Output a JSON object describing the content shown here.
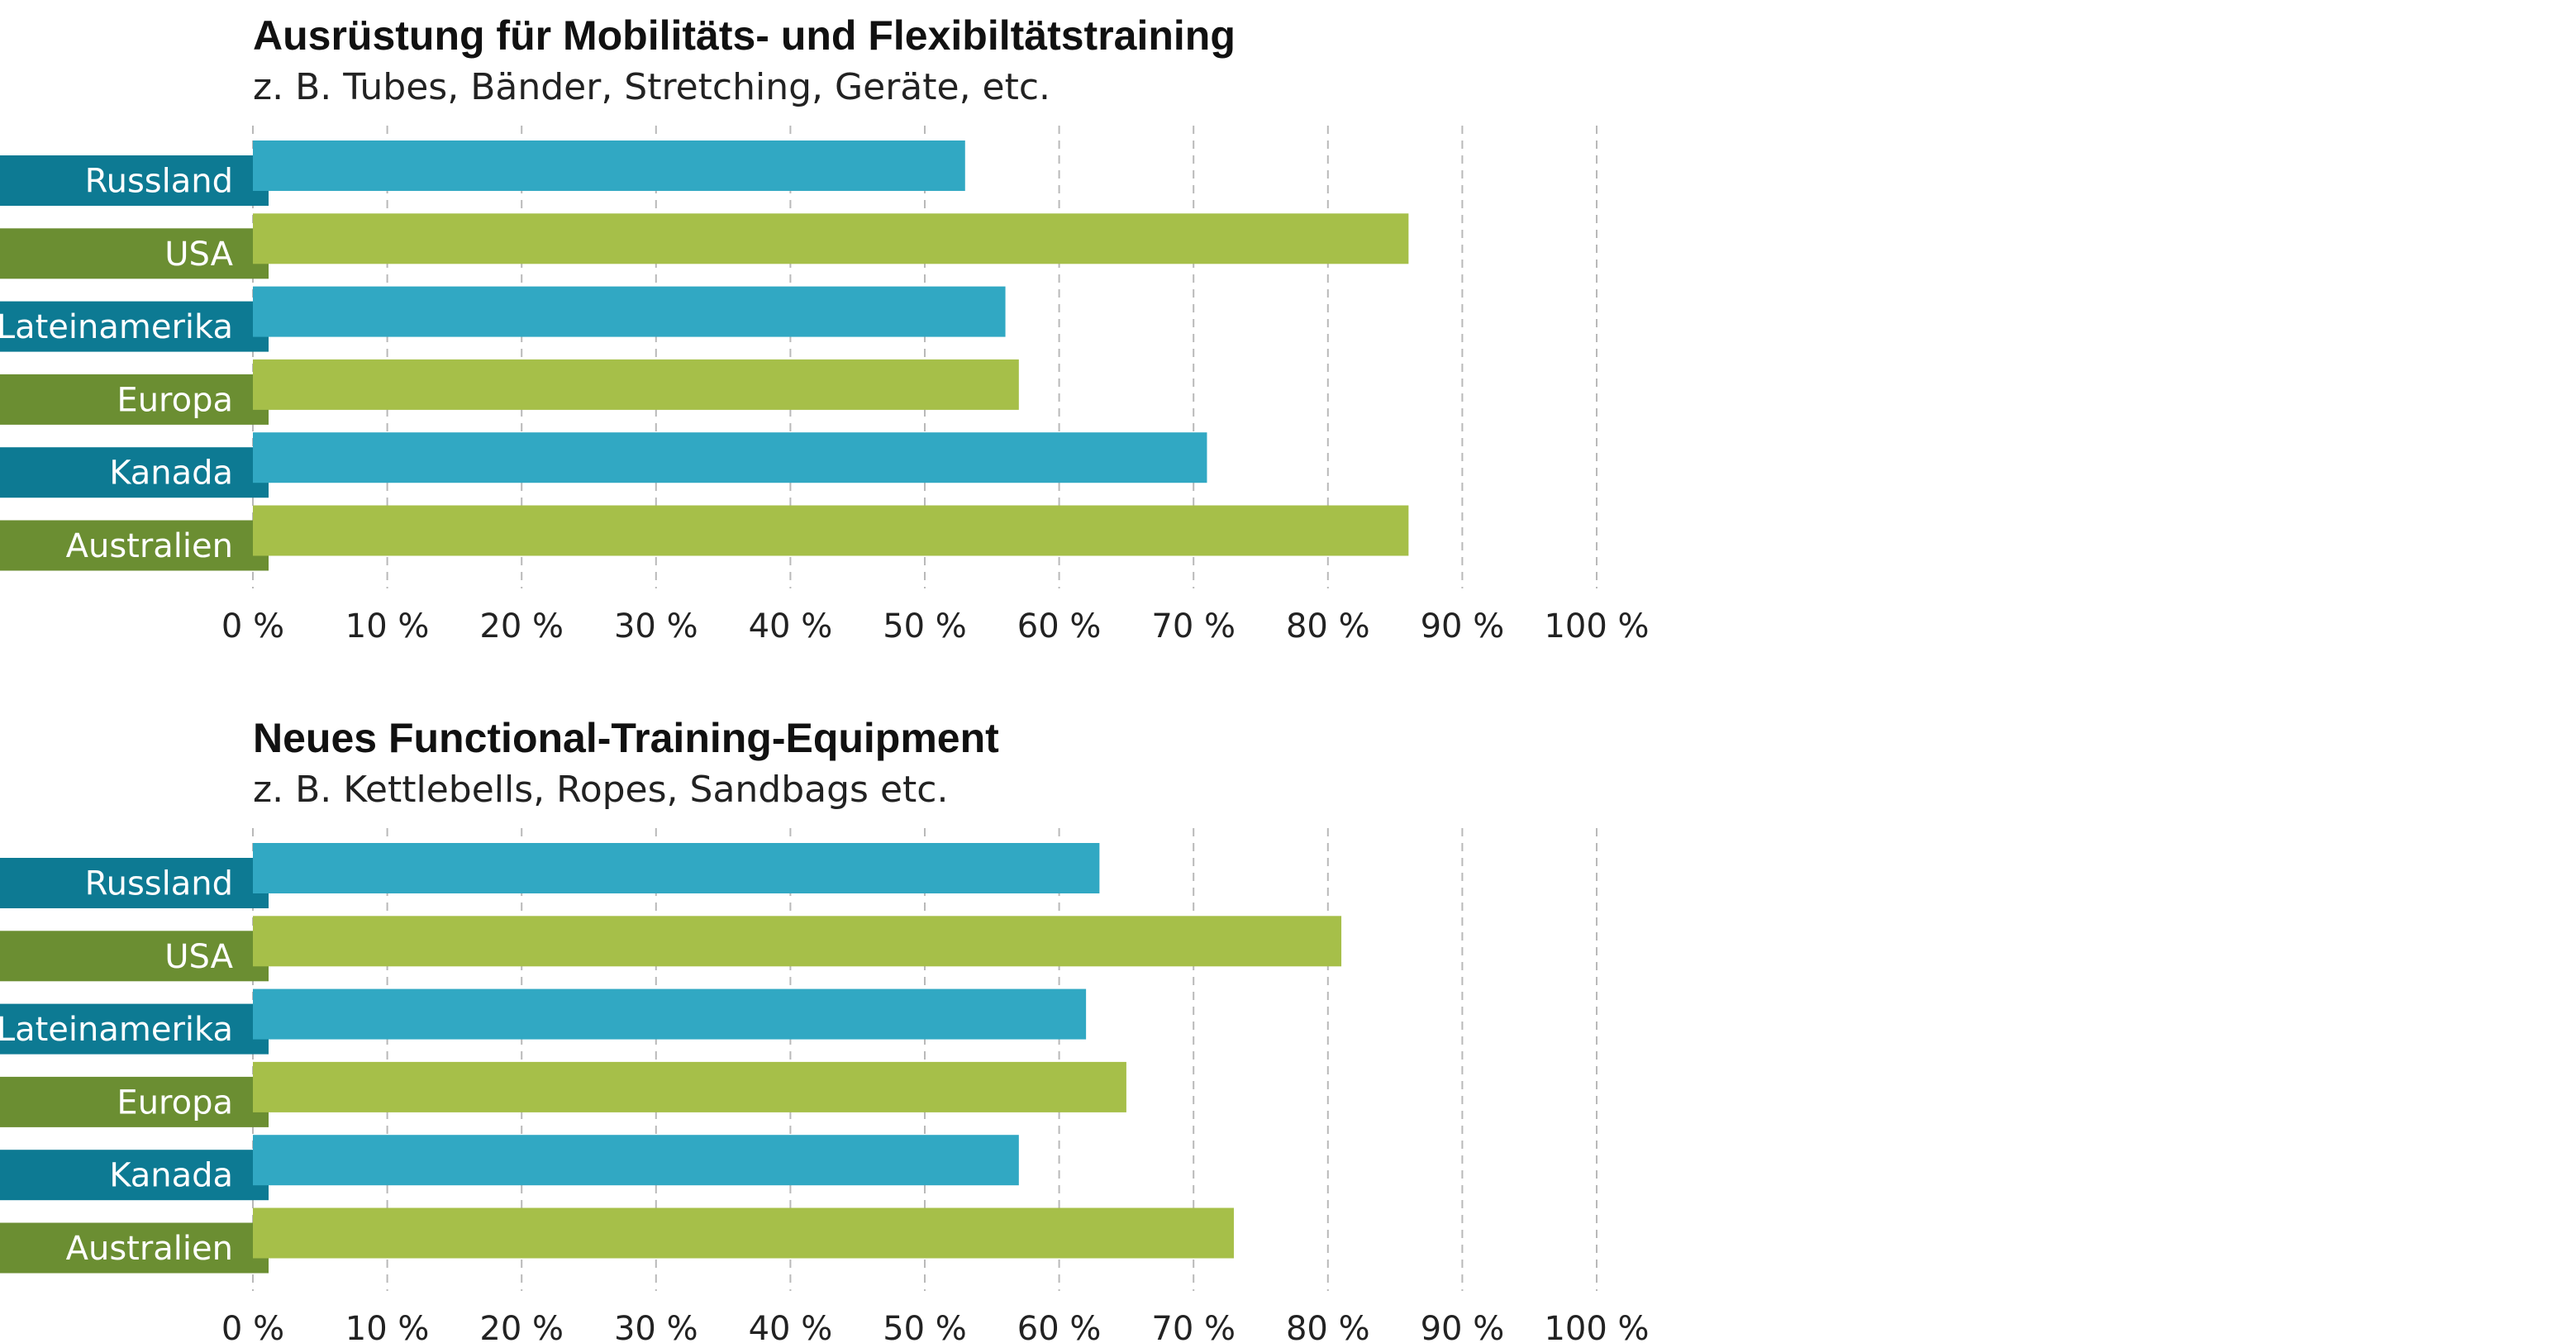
{
  "colors": {
    "teal_bar": "#31a8c3",
    "teal_label": "#0d7a93",
    "green_bar": "#a6bf49",
    "green_label": "#6b8e32",
    "grid": "#b9b9b9"
  },
  "chart_data": [
    {
      "type": "bar",
      "orientation": "horizontal",
      "title": "Ausrüstung für Mobilitäts- und Flexibiltätstraining",
      "subtitle": "z. B. Tubes, Bänder, Stretching, Geräte, etc.",
      "categories": [
        "Russland",
        "USA",
        "Lateinamerika",
        "Europa",
        "Kanada",
        "Australien"
      ],
      "values": [
        53,
        86,
        56,
        57,
        71,
        86
      ],
      "category_colors": [
        "teal",
        "green",
        "teal",
        "green",
        "teal",
        "green"
      ],
      "xlim": [
        0,
        100
      ],
      "xticks": [
        "0 %",
        "10 %",
        "20 %",
        "30 %",
        "40 %",
        "50 %",
        "60 %",
        "70 %",
        "80 %",
        "90 %",
        "100 %"
      ],
      "grid": true
    },
    {
      "type": "bar",
      "orientation": "horizontal",
      "title": "Neues Functional-Training-Equipment",
      "subtitle": "z. B. Kettlebells, Ropes, Sandbags etc.",
      "categories": [
        "Russland",
        "USA",
        "Lateinamerika",
        "Europa",
        "Kanada",
        "Australien"
      ],
      "values": [
        63,
        81,
        62,
        65,
        57,
        73
      ],
      "category_colors": [
        "teal",
        "green",
        "teal",
        "green",
        "teal",
        "green"
      ],
      "xlim": [
        0,
        100
      ],
      "xticks": [
        "0 %",
        "10 %",
        "20 %",
        "30 %",
        "40 %",
        "50 %",
        "60 %",
        "70 %",
        "80 %",
        "90 %",
        "100 %"
      ],
      "grid": true
    }
  ]
}
